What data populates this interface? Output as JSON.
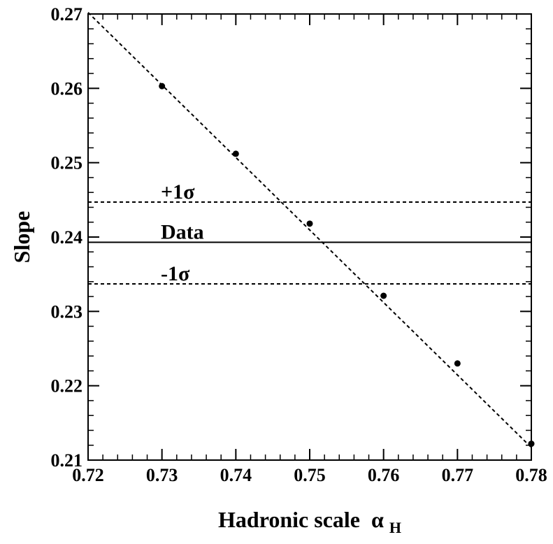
{
  "chart_data": {
    "type": "scatter",
    "title": "",
    "xlabel": "Hadronic scale",
    "xlabel_symbol": "α",
    "xlabel_subscript": "H",
    "ylabel": "Slope",
    "xlim": [
      0.72,
      0.78
    ],
    "ylim": [
      0.21,
      0.27
    ],
    "xticks": [
      "0.72",
      "0.73",
      "0.74",
      "0.75",
      "0.76",
      "0.77",
      "0.78"
    ],
    "yticks": [
      "0.21",
      "0.22",
      "0.23",
      "0.24",
      "0.25",
      "0.26",
      "0.27"
    ],
    "grid": false,
    "series": [
      {
        "style": "points",
        "x": [
          0.73,
          0.74,
          0.75,
          0.76,
          0.77,
          0.78
        ],
        "y": [
          0.2603,
          0.2512,
          0.2418,
          0.2321,
          0.223,
          0.2122
        ]
      },
      {
        "style": "dashed-line",
        "x": [
          0.72,
          0.78
        ],
        "y": [
          0.2702,
          0.2117
        ]
      }
    ],
    "reference_lines": [
      {
        "label": "+1σ",
        "y": 0.2447,
        "style": "dashed"
      },
      {
        "label": "Data",
        "y": 0.2393,
        "style": "solid"
      },
      {
        "label": "-1σ",
        "y": 0.2337,
        "style": "dashed"
      }
    ]
  }
}
